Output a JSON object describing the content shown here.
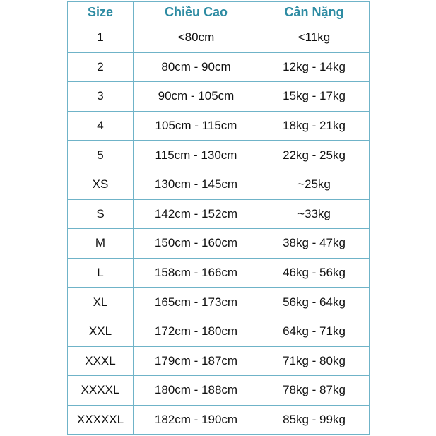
{
  "headers": [
    "Size",
    "Chiều Cao",
    "Cân Nặng"
  ],
  "rows": [
    [
      "1",
      "<80cm",
      "<11kg"
    ],
    [
      "2",
      "80cm - 90cm",
      "12kg - 14kg"
    ],
    [
      "3",
      "90cm - 105cm",
      "15kg - 17kg"
    ],
    [
      "4",
      "105cm - 115cm",
      "18kg - 21kg"
    ],
    [
      "5",
      "115cm - 130cm",
      "22kg - 25kg"
    ],
    [
      "XS",
      "130cm - 145cm",
      "~25kg"
    ],
    [
      "S",
      "142cm - 152cm",
      "~33kg"
    ],
    [
      "M",
      "150cm - 160cm",
      "38kg - 47kg"
    ],
    [
      "L",
      "158cm - 166cm",
      "46kg - 56kg"
    ],
    [
      "XL",
      "165cm - 173cm",
      "56kg - 64kg"
    ],
    [
      "XXL",
      "172cm - 180cm",
      "64kg - 71kg"
    ],
    [
      "XXXL",
      "179cm - 187cm",
      "71kg - 80kg"
    ],
    [
      "XXXXL",
      "180cm - 188cm",
      "78kg - 87kg"
    ],
    [
      "XXXXXL",
      "182cm - 190cm",
      "85kg - 99kg"
    ]
  ],
  "colors": {
    "header_text": "#2e8ca3",
    "border": "#6fb3c8"
  }
}
